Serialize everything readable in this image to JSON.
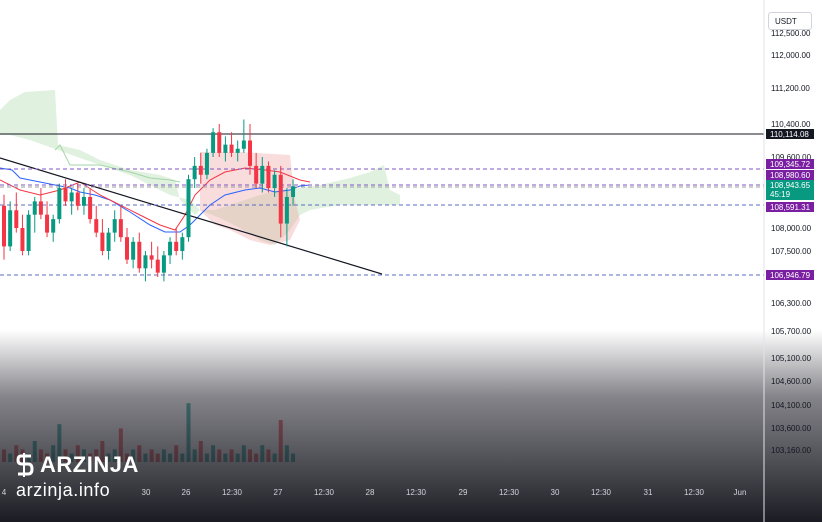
{
  "currency_label": "USDT",
  "logo": {
    "name": "ARZINJA",
    "url": "arzinja.info"
  },
  "colors": {
    "up": "#089981",
    "down": "#f23645",
    "ichimoku_up": "#a5d6a7",
    "ichimoku_down": "#ef9a9a",
    "kijun": "#2962ff",
    "tenkan": "#f23645",
    "price_tag": "#7b1fa2",
    "current_tag": "#089981",
    "black_tag": "#131722"
  },
  "chart_data": {
    "type": "candlestick",
    "y_ticks": [
      "112,500.00",
      "112,000.00",
      "111,200.00",
      "110,400.00",
      "109,600.00",
      "108,000.00",
      "107,500.00",
      "106,300.00",
      "105,700.00",
      "105,100.00",
      "104,600.00",
      "104,100.00",
      "103,600.00",
      "103,160.00"
    ],
    "x_ticks": [
      "4",
      "30",
      "26",
      "12:30",
      "27",
      "12:30",
      "28",
      "12:30",
      "29",
      "12:30",
      "30",
      "12:30",
      "31",
      "12:30",
      "Jun"
    ],
    "price_tags": [
      {
        "label": "110,114.08",
        "style": "black"
      },
      {
        "label": "109,345.72",
        "style": "purple"
      },
      {
        "label": "108,980.60",
        "style": "purple"
      },
      {
        "label": "108,943.65",
        "sub": "45:19",
        "style": "current"
      },
      {
        "label": "108,591.31",
        "style": "purple"
      },
      {
        "label": "106,946.79",
        "style": "purple"
      }
    ],
    "candles": [
      {
        "o": 108500,
        "h": 108750,
        "l": 107300,
        "c": 107600
      },
      {
        "o": 107600,
        "h": 108600,
        "l": 107500,
        "c": 108400
      },
      {
        "o": 108400,
        "h": 108800,
        "l": 107900,
        "c": 108000
      },
      {
        "o": 108000,
        "h": 108300,
        "l": 107400,
        "c": 107500
      },
      {
        "o": 107500,
        "h": 108400,
        "l": 107400,
        "c": 108300
      },
      {
        "o": 108300,
        "h": 108700,
        "l": 107900,
        "c": 108600
      },
      {
        "o": 108600,
        "h": 108900,
        "l": 108200,
        "c": 108300
      },
      {
        "o": 108300,
        "h": 108600,
        "l": 107800,
        "c": 107900
      },
      {
        "o": 107900,
        "h": 108300,
        "l": 107700,
        "c": 108200
      },
      {
        "o": 108200,
        "h": 109000,
        "l": 108100,
        "c": 108900
      },
      {
        "o": 108900,
        "h": 109100,
        "l": 108500,
        "c": 108600
      },
      {
        "o": 108600,
        "h": 108900,
        "l": 108300,
        "c": 108800
      },
      {
        "o": 108800,
        "h": 109000,
        "l": 108400,
        "c": 108500
      },
      {
        "o": 108500,
        "h": 108900,
        "l": 108300,
        "c": 108700
      },
      {
        "o": 108700,
        "h": 108900,
        "l": 108100,
        "c": 108200
      },
      {
        "o": 108200,
        "h": 108500,
        "l": 107800,
        "c": 107900
      },
      {
        "o": 107900,
        "h": 108200,
        "l": 107400,
        "c": 107500
      },
      {
        "o": 107500,
        "h": 108000,
        "l": 107300,
        "c": 107900
      },
      {
        "o": 107900,
        "h": 108400,
        "l": 107700,
        "c": 108200
      },
      {
        "o": 108200,
        "h": 108500,
        "l": 107700,
        "c": 107800
      },
      {
        "o": 107800,
        "h": 108000,
        "l": 107200,
        "c": 107300
      },
      {
        "o": 107300,
        "h": 107800,
        "l": 107100,
        "c": 107700
      },
      {
        "o": 107700,
        "h": 107900,
        "l": 107000,
        "c": 107100
      },
      {
        "o": 107100,
        "h": 107500,
        "l": 106800,
        "c": 107400
      },
      {
        "o": 107400,
        "h": 107700,
        "l": 107100,
        "c": 107300
      },
      {
        "o": 107300,
        "h": 107600,
        "l": 106900,
        "c": 107000
      },
      {
        "o": 107000,
        "h": 107500,
        "l": 106800,
        "c": 107400
      },
      {
        "o": 107400,
        "h": 107800,
        "l": 107200,
        "c": 107700
      },
      {
        "o": 107700,
        "h": 108000,
        "l": 107400,
        "c": 107500
      },
      {
        "o": 107500,
        "h": 107900,
        "l": 107300,
        "c": 107800
      },
      {
        "o": 107800,
        "h": 109200,
        "l": 107700,
        "c": 109100
      },
      {
        "o": 109100,
        "h": 109600,
        "l": 108900,
        "c": 109400
      },
      {
        "o": 109400,
        "h": 109700,
        "l": 109000,
        "c": 109200
      },
      {
        "o": 109200,
        "h": 109800,
        "l": 109100,
        "c": 109700
      },
      {
        "o": 109700,
        "h": 110300,
        "l": 109600,
        "c": 110200
      },
      {
        "o": 110200,
        "h": 110400,
        "l": 109600,
        "c": 109700
      },
      {
        "o": 109700,
        "h": 110100,
        "l": 109500,
        "c": 109900
      },
      {
        "o": 109900,
        "h": 110200,
        "l": 109600,
        "c": 109700
      },
      {
        "o": 109700,
        "h": 110000,
        "l": 109500,
        "c": 109800
      },
      {
        "o": 109800,
        "h": 110500,
        "l": 109700,
        "c": 110000
      },
      {
        "o": 110000,
        "h": 110400,
        "l": 109200,
        "c": 109400
      },
      {
        "o": 109400,
        "h": 109700,
        "l": 108900,
        "c": 109000
      },
      {
        "o": 109000,
        "h": 109600,
        "l": 108800,
        "c": 109400
      },
      {
        "o": 109400,
        "h": 109500,
        "l": 108800,
        "c": 108900
      },
      {
        "o": 108900,
        "h": 109300,
        "l": 108700,
        "c": 109200
      },
      {
        "o": 109200,
        "h": 109400,
        "l": 107800,
        "c": 108100
      },
      {
        "o": 108100,
        "h": 108900,
        "l": 107600,
        "c": 108700
      },
      {
        "o": 108700,
        "h": 109100,
        "l": 108500,
        "c": 108940
      }
    ],
    "volume": [
      3,
      2,
      4,
      3,
      2,
      5,
      3,
      2,
      4,
      9,
      3,
      2,
      4,
      3,
      2,
      3,
      5,
      2,
      3,
      8,
      2,
      3,
      4,
      2,
      3,
      2,
      3,
      2,
      4,
      2,
      14,
      3,
      5,
      2,
      4,
      3,
      2,
      3,
      2,
      4,
      3,
      2,
      4,
      3,
      2,
      10,
      4,
      2
    ]
  }
}
